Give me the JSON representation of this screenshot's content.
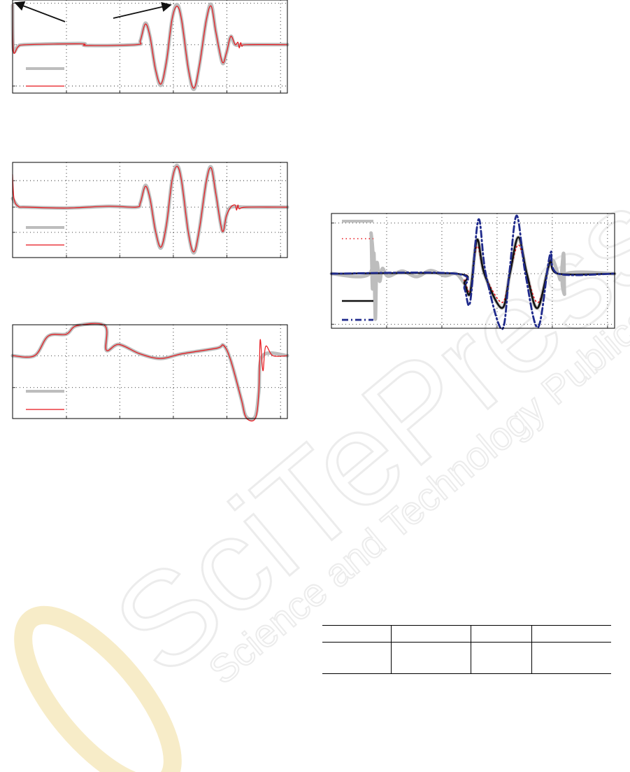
{
  "watermark": {
    "text": "SciTePress",
    "subtext": "Science and Technology Publications",
    "color": "#e6e6e6"
  },
  "colors": {
    "measured": "#bdbdbd",
    "model": "#e8151b",
    "black": "#111111",
    "blue": "#1f2a8c"
  },
  "chart_data": [
    {
      "type": "line",
      "xlim": [
        0,
        100
      ],
      "ylim": [
        -1.17,
        1.08
      ],
      "grid": true,
      "xticks": [
        19.6,
        39,
        58.5,
        78,
        97.5
      ],
      "yticks": [
        -1,
        0,
        1
      ],
      "arrows": true,
      "series": [
        {
          "style": "gray-thick",
          "points": [
            [
              0,
              0.95
            ],
            [
              0.3,
              -0.12
            ],
            [
              2,
              -0.04
            ],
            [
              5,
              0
            ],
            [
              25,
              0.03
            ],
            [
              27,
              -0.02
            ],
            [
              45,
              0
            ],
            [
              46.5,
              0.1
            ],
            [
              48.3,
              0.52
            ],
            [
              50,
              0.2
            ],
            [
              52,
              -0.6
            ],
            [
              54,
              -0.98
            ],
            [
              56,
              -0.4
            ],
            [
              58,
              0.6
            ],
            [
              59.8,
              0.97
            ],
            [
              61.5,
              0.6
            ],
            [
              64,
              -0.6
            ],
            [
              66,
              -1.08
            ],
            [
              68,
              -0.5
            ],
            [
              70.5,
              0.6
            ],
            [
              72.3,
              0.97
            ],
            [
              74,
              0.3
            ],
            [
              76.3,
              -0.44
            ],
            [
              77.8,
              -0.2
            ],
            [
              79.4,
              0.2
            ],
            [
              81,
              0
            ],
            [
              85,
              0
            ],
            [
              100,
              0
            ]
          ]
        },
        {
          "style": "red-thin",
          "points": [
            [
              0,
              0.98
            ],
            [
              0.3,
              -0.15
            ],
            [
              2,
              -0.05
            ],
            [
              5,
              0
            ],
            [
              25,
              0.02
            ],
            [
              27,
              -0.02
            ],
            [
              45,
              0
            ],
            [
              46.5,
              0.1
            ],
            [
              48.3,
              0.5
            ],
            [
              50,
              0.2
            ],
            [
              52,
              -0.6
            ],
            [
              54,
              -0.95
            ],
            [
              56,
              -0.4
            ],
            [
              58,
              0.6
            ],
            [
              59.8,
              0.93
            ],
            [
              61.5,
              0.6
            ],
            [
              64,
              -0.6
            ],
            [
              66,
              -1.05
            ],
            [
              68,
              -0.5
            ],
            [
              70.5,
              0.6
            ],
            [
              72.3,
              0.93
            ],
            [
              74,
              0.3
            ],
            [
              76.3,
              -0.42
            ],
            [
              77.8,
              -0.2
            ],
            [
              79.4,
              0.2
            ],
            [
              81,
              0
            ],
            [
              82,
              0.06
            ],
            [
              82.5,
              -0.08
            ],
            [
              83,
              0.05
            ],
            [
              83.5,
              -0.04
            ],
            [
              85,
              0
            ],
            [
              100,
              0
            ]
          ]
        }
      ]
    },
    {
      "type": "line",
      "xlim": [
        0,
        100
      ],
      "ylim": [
        -1.16,
        1.03
      ],
      "grid": true,
      "xticks": [
        19.6,
        39,
        58.5,
        78,
        97.5
      ],
      "yticks": [
        -0.58,
        0,
        0.61
      ],
      "series": [
        {
          "style": "gray-thick",
          "points": [
            [
              0,
              0.2
            ],
            [
              2,
              0.02
            ],
            [
              5,
              0
            ],
            [
              20,
              -0.02
            ],
            [
              35,
              0.02
            ],
            [
              45,
              0
            ],
            [
              46.5,
              0.1
            ],
            [
              48.3,
              0.5
            ],
            [
              50,
              0.2
            ],
            [
              52,
              -0.55
            ],
            [
              54,
              -0.94
            ],
            [
              56,
              -0.4
            ],
            [
              58,
              0.6
            ],
            [
              59.8,
              0.96
            ],
            [
              61.5,
              0.6
            ],
            [
              64,
              -0.6
            ],
            [
              66,
              -1.05
            ],
            [
              68,
              -0.5
            ],
            [
              70.5,
              0.6
            ],
            [
              72.3,
              0.92
            ],
            [
              74,
              0.3
            ],
            [
              76.3,
              -0.55
            ],
            [
              77.8,
              -0.2
            ],
            [
              79.4,
              0
            ],
            [
              85,
              0
            ],
            [
              100,
              0
            ]
          ]
        },
        {
          "style": "red-thin",
          "points": [
            [
              0,
              0.75
            ],
            [
              0.5,
              0.2
            ],
            [
              2,
              0.02
            ],
            [
              5,
              0
            ],
            [
              20,
              -0.02
            ],
            [
              35,
              0.02
            ],
            [
              45,
              0
            ],
            [
              46.5,
              0.1
            ],
            [
              48.3,
              0.48
            ],
            [
              50,
              0.2
            ],
            [
              52,
              -0.55
            ],
            [
              54,
              -0.92
            ],
            [
              56,
              -0.4
            ],
            [
              58,
              0.6
            ],
            [
              59.8,
              0.94
            ],
            [
              61.5,
              0.6
            ],
            [
              64,
              -0.6
            ],
            [
              66,
              -1.03
            ],
            [
              68,
              -0.5
            ],
            [
              70.5,
              0.6
            ],
            [
              72.3,
              0.9
            ],
            [
              74,
              0.3
            ],
            [
              76.3,
              -0.55
            ],
            [
              77.8,
              -0.2
            ],
            [
              79.4,
              0
            ],
            [
              81,
              0.05
            ],
            [
              81.5,
              -0.07
            ],
            [
              82,
              0.05
            ],
            [
              82.5,
              -0.04
            ],
            [
              85,
              0
            ],
            [
              100,
              0
            ]
          ]
        }
      ]
    },
    {
      "type": "line",
      "xlim": [
        0,
        100
      ],
      "ylim": [
        0,
        1
      ],
      "grid": true,
      "xticks": [
        19.6,
        39,
        58.5,
        78,
        97.5
      ],
      "yticks": [
        0.33,
        0.67
      ],
      "series": [
        {
          "style": "gray-thick",
          "points": [
            [
              0,
              0.67
            ],
            [
              8,
              0.67
            ],
            [
              13,
              0.88
            ],
            [
              19.6,
              0.9
            ],
            [
              23.4,
              0.99
            ],
            [
              33.6,
              0.99
            ],
            [
              34.1,
              0.73
            ],
            [
              38.7,
              0.79
            ],
            [
              46.3,
              0.69
            ],
            [
              53.9,
              0.64
            ],
            [
              61.6,
              0.69
            ],
            [
              74.3,
              0.75
            ],
            [
              76.8,
              0.78
            ],
            [
              79.4,
              0.62
            ],
            [
              83.2,
              0.21
            ],
            [
              85,
              0.02
            ],
            [
              88.3,
              0.02
            ],
            [
              89.6,
              0.28
            ],
            [
              91,
              0.67
            ],
            [
              100,
              0.67
            ]
          ]
        },
        {
          "style": "red-thin",
          "points": [
            [
              0,
              0.67
            ],
            [
              8,
              0.67
            ],
            [
              13,
              0.88
            ],
            [
              19.6,
              0.9
            ],
            [
              23.4,
              0.99
            ],
            [
              33.6,
              0.99
            ],
            [
              34.1,
              0.73
            ],
            [
              38.7,
              0.79
            ],
            [
              46.3,
              0.69
            ],
            [
              53.9,
              0.64
            ],
            [
              61.6,
              0.69
            ],
            [
              74.3,
              0.75
            ],
            [
              76.8,
              0.78
            ],
            [
              79.4,
              0.62
            ],
            [
              83.2,
              0.21
            ],
            [
              85,
              0.01
            ],
            [
              88.3,
              0.0
            ],
            [
              89.6,
              0.28
            ],
            [
              90.1,
              0.84
            ],
            [
              91.1,
              0.51
            ],
            [
              92.1,
              0.77
            ],
            [
              94.7,
              0.67
            ],
            [
              100,
              0.67
            ]
          ]
        }
      ]
    },
    {
      "type": "line",
      "xlim": [
        0,
        100
      ],
      "ylim": [
        -1.08,
        1.19
      ],
      "grid": true,
      "xticks": [
        19.5,
        39,
        58.5,
        78,
        97.5
      ],
      "yticks": [
        -1,
        0,
        1
      ],
      "series": [
        {
          "style": "gray-thick",
          "points": [
            [
              0,
              0
            ],
            [
              13.5,
              0
            ],
            [
              14,
              0.8
            ],
            [
              14.5,
              -0.3
            ],
            [
              15,
              0.4
            ],
            [
              15.5,
              -0.9
            ],
            [
              16,
              0.2
            ],
            [
              17,
              -0.15
            ],
            [
              18,
              0.1
            ],
            [
              20,
              -0.05
            ],
            [
              25,
              0.05
            ],
            [
              30,
              -0.06
            ],
            [
              35,
              0.06
            ],
            [
              40,
              -0.04
            ],
            [
              44,
              0
            ],
            [
              47,
              -0.2
            ],
            [
              49,
              -0.38
            ],
            [
              51.4,
              0.67
            ],
            [
              54,
              0
            ],
            [
              60.2,
              -0.68
            ],
            [
              63,
              0
            ],
            [
              66,
              0.72
            ],
            [
              69,
              0
            ],
            [
              72.8,
              -0.68
            ],
            [
              77.3,
              0.25
            ],
            [
              80,
              0
            ],
            [
              81,
              -0.1
            ],
            [
              82,
              0.4
            ],
            [
              82.3,
              -0.4
            ],
            [
              83,
              0
            ],
            [
              100,
              0
            ]
          ]
        },
        {
          "style": "red-dotted",
          "points": [
            [
              0,
              0
            ],
            [
              44,
              0
            ],
            [
              47,
              -0.15
            ],
            [
              49,
              -0.33
            ],
            [
              51.4,
              0.54
            ],
            [
              54,
              0
            ],
            [
              60.2,
              -0.57
            ],
            [
              63,
              0
            ],
            [
              66,
              0.57
            ],
            [
              69,
              0
            ],
            [
              73,
              -0.57
            ],
            [
              77.3,
              0.22
            ],
            [
              80,
              0
            ],
            [
              100,
              0
            ]
          ]
        },
        {
          "style": "black-solid",
          "points": [
            [
              0,
              0
            ],
            [
              44,
              0
            ],
            [
              47,
              -0.2
            ],
            [
              49,
              -0.38
            ],
            [
              51.4,
              0.67
            ],
            [
              54,
              0
            ],
            [
              60.2,
              -0.68
            ],
            [
              63,
              0
            ],
            [
              66,
              0.72
            ],
            [
              69,
              0
            ],
            [
              72.8,
              -0.68
            ],
            [
              77.3,
              0.25
            ],
            [
              80,
              0
            ],
            [
              100,
              0
            ]
          ]
        },
        {
          "style": "blue-dashdot",
          "points": [
            [
              0,
              0
            ],
            [
              44,
              0
            ],
            [
              47,
              -0.3
            ],
            [
              49,
              -0.56
            ],
            [
              51.9,
              1.07
            ],
            [
              54.5,
              0
            ],
            [
              60.2,
              -1.1
            ],
            [
              62.8,
              0
            ],
            [
              65.4,
              1.15
            ],
            [
              68.5,
              0
            ],
            [
              73,
              -1.06
            ],
            [
              77.3,
              0.4
            ],
            [
              80,
              0
            ],
            [
              100,
              0
            ]
          ]
        }
      ]
    }
  ],
  "table": {
    "columns": 4,
    "rows": 2
  }
}
